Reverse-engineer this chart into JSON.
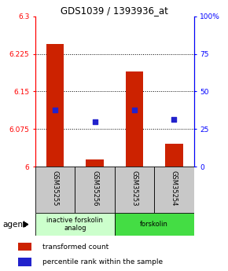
{
  "title": "GDS1039 / 1393936_at",
  "samples": [
    "GSM35255",
    "GSM35256",
    "GSM35253",
    "GSM35254"
  ],
  "bar_values": [
    6.245,
    6.015,
    6.19,
    6.045
  ],
  "blue_values": [
    6.113,
    6.09,
    6.113,
    6.095
  ],
  "bar_bottom": 6.0,
  "ylim_left": [
    6.0,
    6.3
  ],
  "left_ticks": [
    6,
    6.075,
    6.15,
    6.225,
    6.3
  ],
  "right_ticks": [
    0,
    25,
    50,
    75,
    100
  ],
  "right_tick_labels": [
    "0",
    "25",
    "50",
    "75",
    "100%"
  ],
  "grid_lines": [
    6.075,
    6.15,
    6.225
  ],
  "bar_color": "#cc2200",
  "blue_color": "#2222cc",
  "agent_groups": [
    {
      "label": "inactive forskolin\nanalog",
      "start": 0,
      "end": 2,
      "color": "#ccffcc"
    },
    {
      "label": "forskolin",
      "start": 2,
      "end": 4,
      "color": "#44dd44"
    }
  ],
  "legend_red_label": "transformed count",
  "legend_blue_label": "percentile rank within the sample",
  "agent_label": "agent",
  "background_color": "#ffffff",
  "sample_box_color": "#c8c8c8"
}
